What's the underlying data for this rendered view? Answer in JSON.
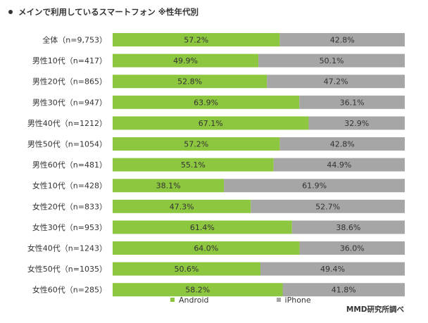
{
  "title": "メインで利用しているスマートフォン ※性年代別",
  "source": "MMD研究所調べ",
  "colors": {
    "android": "#8dc63f",
    "iphone": "#a6a6a6",
    "text": "#333333"
  },
  "chart_data": {
    "type": "bar",
    "orientation": "horizontal",
    "stacked": "100%",
    "title": "メインで利用しているスマートフォン ※性年代別",
    "legend_position": "bottom",
    "grid": false,
    "categories": [
      "全体（n=9,753）",
      "男性10代（n=417）",
      "男性20代（n=865）",
      "男性30代（n=947）",
      "男性40代（n=1212）",
      "男性50代（n=1054）",
      "男性60代（n=481）",
      "女性10代（n=428）",
      "女性20代（n=833）",
      "女性30代（n=953）",
      "女性40代（n=1243）",
      "女性50代（n=1035）",
      "女性60代（n=285）"
    ],
    "series": [
      {
        "name": "Android",
        "values": [
          57.2,
          49.9,
          52.8,
          63.9,
          67.1,
          57.2,
          55.1,
          38.1,
          47.3,
          61.4,
          64.0,
          50.6,
          58.2
        ]
      },
      {
        "name": "iPhone",
        "values": [
          42.8,
          50.1,
          47.2,
          36.1,
          32.9,
          42.8,
          44.9,
          61.9,
          52.7,
          38.6,
          36.0,
          49.4,
          41.8
        ]
      }
    ]
  }
}
